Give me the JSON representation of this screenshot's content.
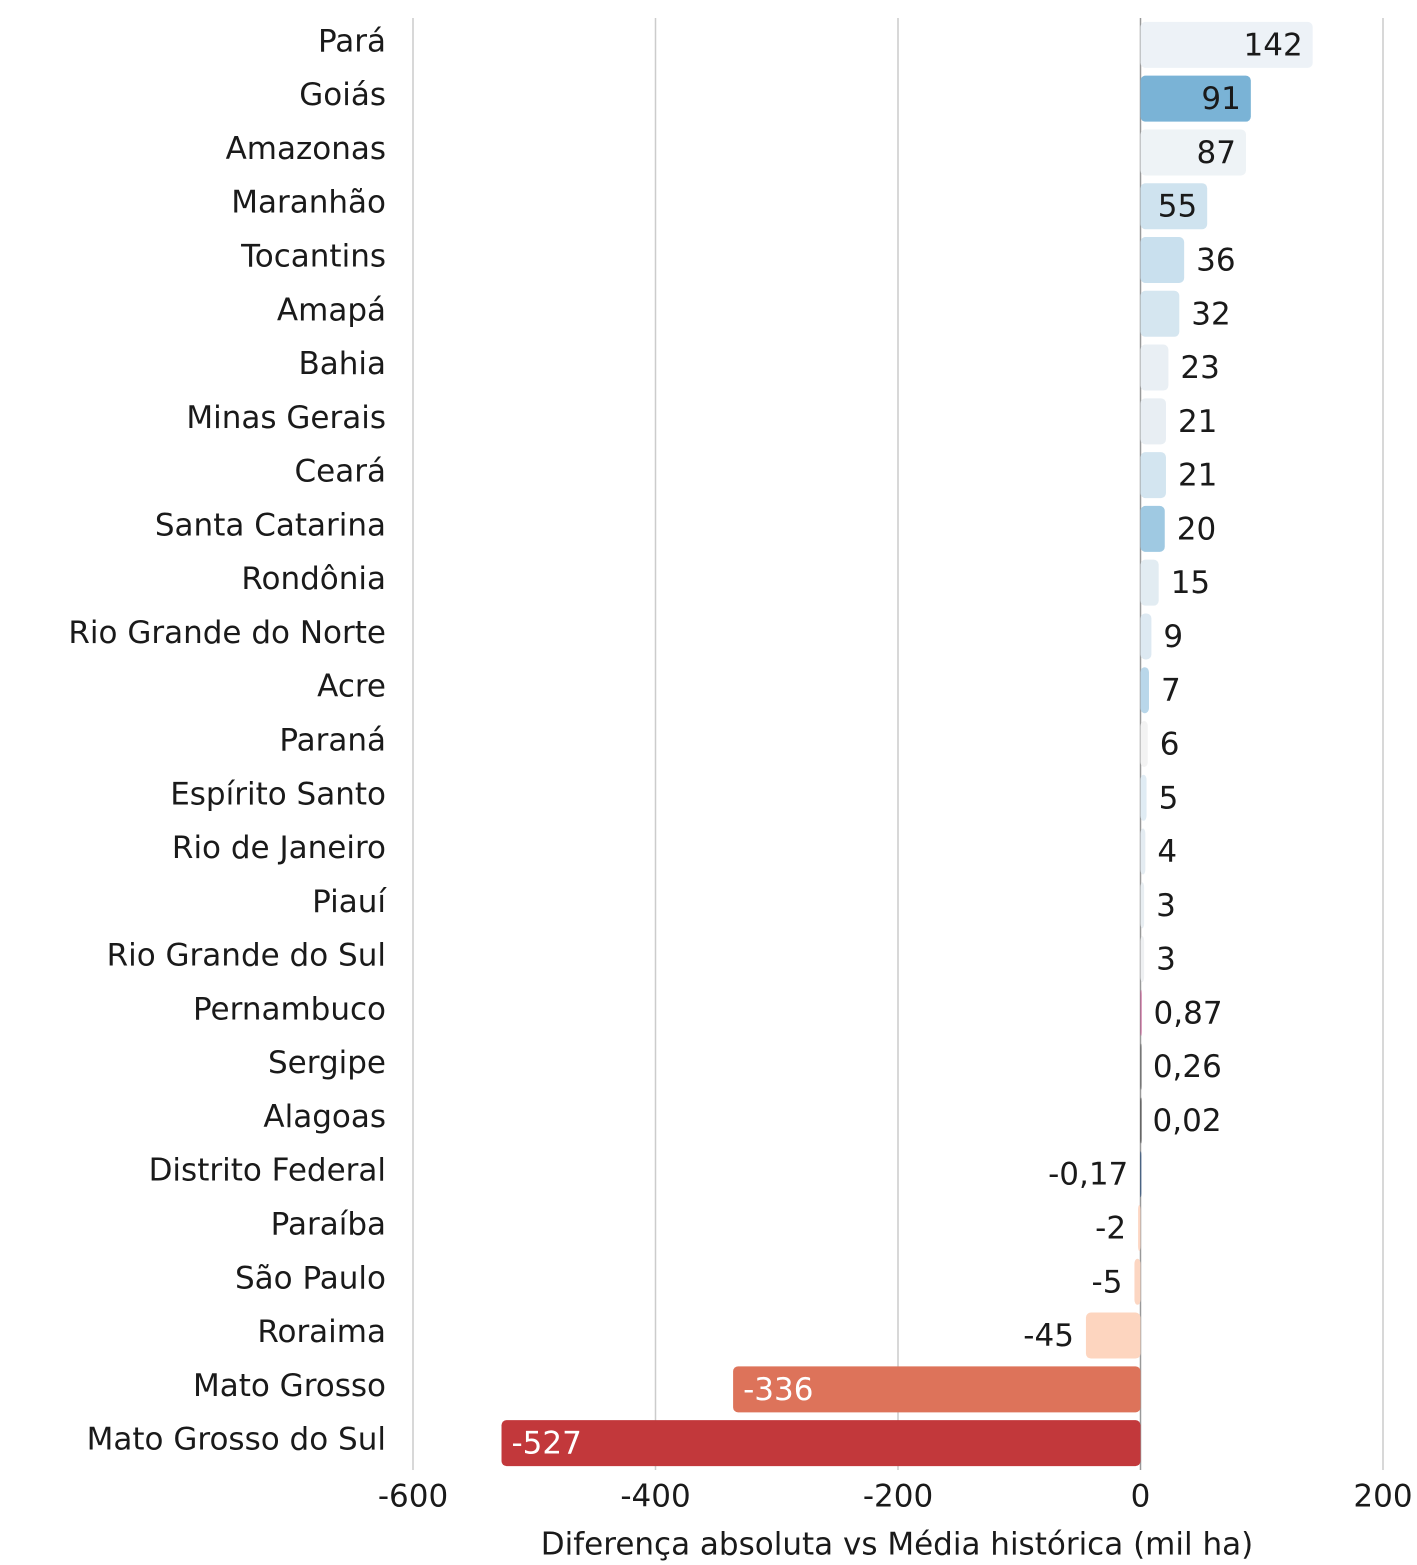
{
  "chart_data": {
    "type": "barh",
    "categories": [
      "Pará",
      "Goiás",
      "Amazonas",
      "Maranhão",
      "Tocantins",
      "Amapá",
      "Bahia",
      "Minas Gerais",
      "Ceará",
      "Santa Catarina",
      "Rondônia",
      "Rio Grande do Norte",
      "Acre",
      "Paraná",
      "Espírito Santo",
      "Rio de Janeiro",
      "Piauí",
      "Rio Grande do Sul",
      "Pernambuco",
      "Sergipe",
      "Alagoas",
      "Distrito Federal",
      "Paraíba",
      "São Paulo",
      "Roraima",
      "Mato Grosso",
      "Mato Grosso do Sul"
    ],
    "values": [
      142,
      91,
      87,
      55,
      36,
      32,
      23,
      21,
      21,
      20,
      15,
      9,
      7,
      6,
      5,
      4,
      3,
      3,
      0.87,
      0.26,
      0.02,
      -0.17,
      -2,
      -5,
      -45,
      -336,
      -527
    ],
    "value_labels": [
      "142",
      "91",
      "87",
      "55",
      "36",
      "32",
      "23",
      "21",
      "21",
      "20",
      "15",
      "9",
      "7",
      "6",
      "5",
      "4",
      "3",
      "3",
      "0,87",
      "0,26",
      "0,02",
      "-0,17",
      "-2",
      "-5",
      "-45",
      "-336",
      "-527"
    ],
    "colors": [
      "#edf2f7",
      "#7ab3d6",
      "#eef3f6",
      "#cfe3ef",
      "#c9e0ee",
      "#d5e6f0",
      "#e9eff4",
      "#e8eef3",
      "#d3e5f0",
      "#9fc9e2",
      "#e2ecf2",
      "#dde9f2",
      "#b9d7ea",
      "#f3f3f3",
      "#e0ecf4",
      "#e4ecf2",
      "#e8eef2",
      "#eef0f2",
      "#c0508a",
      "#555555",
      "#333333",
      "#2a4d7a",
      "#fdd7c4",
      "#fcd6c2",
      "#fdd5bf",
      "#dd735a",
      "#c2383b"
    ],
    "xlabel": "Diferença absoluta vs Média histórica (mil ha)",
    "xlim": [
      -600,
      200
    ],
    "xticks": [
      -600,
      -400,
      -200,
      0,
      200
    ],
    "grid": true
  }
}
